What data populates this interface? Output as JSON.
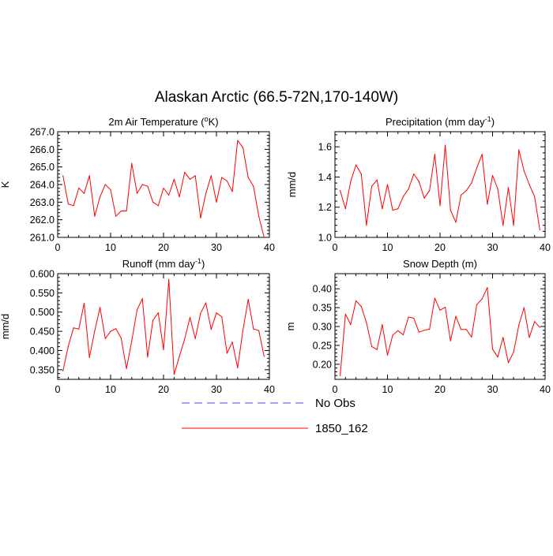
{
  "figure": {
    "title": "Alaskan Arctic (66.5-72N,170-140W)"
  },
  "legend": {
    "position": "bottom-center",
    "entries": [
      {
        "label": "No Obs",
        "color": "#4848f0",
        "style": "dashed"
      },
      {
        "label": "1850_162",
        "color": "#ff0000",
        "style": "solid"
      }
    ]
  },
  "chart_data": [
    {
      "type": "line",
      "title": "2m Air Temperature (°K)",
      "title_main": "2m Air Temperature (",
      "title_sup": "o",
      "title_tail": "K)",
      "ylabel": "K",
      "xlim": [
        0,
        40
      ],
      "ylim": [
        261.0,
        267.0
      ],
      "xticks": [
        0,
        10,
        20,
        30,
        40
      ],
      "yticks": [
        261.0,
        262.0,
        263.0,
        264.0,
        265.0,
        266.0,
        267.0
      ],
      "ytick_labels": [
        "261.0",
        "262.0",
        "263.0",
        "264.0",
        "265.0",
        "266.0",
        "267.0"
      ],
      "series": [
        {
          "name": "1850_162",
          "color": "#ff0000",
          "x": [
            1,
            2,
            3,
            4,
            5,
            6,
            7,
            8,
            9,
            10,
            11,
            12,
            13,
            14,
            15,
            16,
            17,
            18,
            19,
            20,
            21,
            22,
            23,
            24,
            25,
            26,
            27,
            28,
            29,
            30,
            31,
            32,
            33,
            34,
            35,
            36,
            37,
            38,
            39
          ],
          "values": [
            264.5,
            262.9,
            262.8,
            263.8,
            263.5,
            264.5,
            262.2,
            263.3,
            264.0,
            263.7,
            262.2,
            262.5,
            262.5,
            265.2,
            263.5,
            264.0,
            263.9,
            263.0,
            262.8,
            263.8,
            263.4,
            264.3,
            263.3,
            264.7,
            264.3,
            264.5,
            262.1,
            263.5,
            264.5,
            263.0,
            264.4,
            264.2,
            263.6,
            266.5,
            266.1,
            264.4,
            263.9,
            262.2,
            261.0
          ]
        }
      ]
    },
    {
      "type": "line",
      "title": "Precipitation (mm day-1)",
      "title_main": "Precipitation (mm day",
      "title_sup": "-1",
      "title_tail": ")",
      "ylabel": "mm/d",
      "xlim": [
        0,
        40
      ],
      "ylim": [
        1.0,
        1.7
      ],
      "xticks": [
        0,
        10,
        20,
        30,
        40
      ],
      "yticks": [
        1.0,
        1.2,
        1.4,
        1.6
      ],
      "ytick_labels": [
        "1.0",
        "1.2",
        "1.4",
        "1.6"
      ],
      "series": [
        {
          "name": "1850_162",
          "color": "#ff0000",
          "x": [
            1,
            2,
            3,
            4,
            5,
            6,
            7,
            8,
            9,
            10,
            11,
            12,
            13,
            14,
            15,
            16,
            17,
            18,
            19,
            20,
            21,
            22,
            23,
            24,
            25,
            26,
            27,
            28,
            29,
            30,
            31,
            32,
            33,
            34,
            35,
            36,
            37,
            38,
            39
          ],
          "values": [
            1.31,
            1.19,
            1.37,
            1.48,
            1.42,
            1.08,
            1.34,
            1.38,
            1.19,
            1.35,
            1.18,
            1.19,
            1.27,
            1.32,
            1.42,
            1.37,
            1.26,
            1.31,
            1.55,
            1.21,
            1.61,
            1.18,
            1.1,
            1.28,
            1.31,
            1.36,
            1.46,
            1.55,
            1.22,
            1.41,
            1.32,
            1.08,
            1.33,
            1.08,
            1.58,
            1.44,
            1.35,
            1.27,
            1.05
          ]
        }
      ]
    },
    {
      "type": "line",
      "title": "Runoff (mm day-1)",
      "title_main": "Runoff (mm day",
      "title_sup": "-1",
      "title_tail": ")",
      "ylabel": "mm/d",
      "xlim": [
        0,
        40
      ],
      "ylim": [
        0.325,
        0.6
      ],
      "xticks": [
        0,
        10,
        20,
        30,
        40
      ],
      "yticks": [
        0.35,
        0.4,
        0.45,
        0.5,
        0.55,
        0.6
      ],
      "ytick_labels": [
        "0.350",
        "0.400",
        "0.450",
        "0.500",
        "0.550",
        "0.600"
      ],
      "series": [
        {
          "name": "1850_162",
          "color": "#ff0000",
          "x": [
            1,
            2,
            3,
            4,
            5,
            6,
            7,
            8,
            9,
            10,
            11,
            12,
            13,
            14,
            15,
            16,
            17,
            18,
            19,
            20,
            21,
            22,
            23,
            24,
            25,
            26,
            27,
            28,
            29,
            30,
            31,
            32,
            33,
            34,
            35,
            36,
            37,
            38,
            39
          ],
          "values": [
            0.347,
            0.411,
            0.459,
            0.456,
            0.523,
            0.382,
            0.451,
            0.512,
            0.431,
            0.45,
            0.457,
            0.432,
            0.353,
            0.425,
            0.506,
            0.535,
            0.383,
            0.479,
            0.498,
            0.402,
            0.585,
            0.338,
            0.385,
            0.43,
            0.486,
            0.431,
            0.497,
            0.524,
            0.455,
            0.498,
            0.488,
            0.393,
            0.422,
            0.355,
            0.452,
            0.533,
            0.456,
            0.452,
            0.385
          ]
        }
      ]
    },
    {
      "type": "line",
      "title": "Snow Depth (m)",
      "title_main": "Snow Depth (m)",
      "title_sup": "",
      "title_tail": "",
      "ylabel": "m",
      "xlim": [
        0,
        40
      ],
      "ylim": [
        0.16,
        0.44
      ],
      "xticks": [
        0,
        10,
        20,
        30,
        40
      ],
      "yticks": [
        0.2,
        0.25,
        0.3,
        0.35,
        0.4
      ],
      "ytick_labels": [
        "0.20",
        "0.25",
        "0.30",
        "0.35",
        "0.40"
      ],
      "series": [
        {
          "name": "1850_162",
          "color": "#ff0000",
          "x": [
            1,
            2,
            3,
            4,
            5,
            6,
            7,
            8,
            9,
            10,
            11,
            12,
            13,
            14,
            15,
            16,
            17,
            18,
            19,
            20,
            21,
            22,
            23,
            24,
            25,
            26,
            27,
            28,
            29,
            30,
            31,
            32,
            33,
            34,
            35,
            36,
            37,
            38,
            39
          ],
          "values": [
            0.17,
            0.333,
            0.305,
            0.368,
            0.353,
            0.31,
            0.247,
            0.239,
            0.305,
            0.224,
            0.277,
            0.289,
            0.278,
            0.325,
            0.322,
            0.285,
            0.29,
            0.293,
            0.375,
            0.343,
            0.351,
            0.262,
            0.327,
            0.292,
            0.292,
            0.272,
            0.358,
            0.373,
            0.403,
            0.24,
            0.219,
            0.271,
            0.204,
            0.232,
            0.304,
            0.35,
            0.271,
            0.313,
            0.298
          ]
        }
      ]
    }
  ]
}
